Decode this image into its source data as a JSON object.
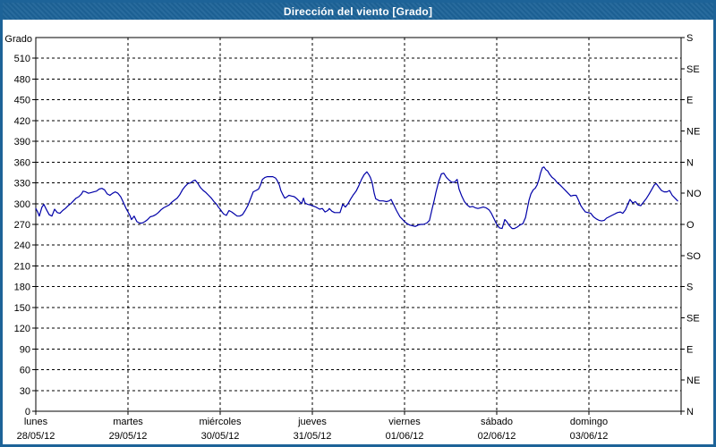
{
  "window": {
    "title": "Dirección del viento [Grado]"
  },
  "colors": {
    "frame": "#1d6398",
    "title_text": "#ffffff",
    "background": "#ffffff",
    "axis": "#000000",
    "grid": "#000000",
    "line": "#0000a8"
  },
  "chart_data": {
    "type": "line",
    "title": "Dirección del viento [Grado]",
    "ylabel": "Grado",
    "ylim": [
      0,
      540
    ],
    "y_left": {
      "label": "Grado",
      "tick_min": 0,
      "tick_max": 510,
      "tick_step": 30
    },
    "y_right": {
      "tick_step": 45,
      "labels_from_bottom": [
        "N",
        "NE",
        "E",
        "SE",
        "S",
        "SO",
        "O",
        "NO",
        "N",
        "NE",
        "E",
        "SE",
        "S"
      ]
    },
    "x_axis": {
      "unit": "hours",
      "min": 0,
      "max": 168,
      "hours_per_day": 24,
      "days": [
        {
          "name": "lunes",
          "date": "28/05/12"
        },
        {
          "name": "martes",
          "date": "29/05/12"
        },
        {
          "name": "miércoles",
          "date": "30/05/12"
        },
        {
          "name": "jueves",
          "date": "31/05/12"
        },
        {
          "name": "viernes",
          "date": "01/06/12"
        },
        {
          "name": "sábado",
          "date": "02/06/12"
        },
        {
          "name": "domingo",
          "date": "03/06/12"
        }
      ]
    },
    "grid": {
      "horizontal_every": 30,
      "vertical_every_hours": 24,
      "style": "dashed"
    },
    "legend": "none",
    "series": [
      {
        "name": "Dirección del viento",
        "unit": "Grado",
        "color": "#0000a8",
        "points": [
          [
            0,
            293
          ],
          [
            0.5,
            288
          ],
          [
            0.9,
            282
          ],
          [
            1.6,
            295
          ],
          [
            2.1,
            299
          ],
          [
            2.8,
            291
          ],
          [
            3.5,
            284
          ],
          [
            4.2,
            282
          ],
          [
            4.9,
            292
          ],
          [
            5.6,
            287
          ],
          [
            6.3,
            286
          ],
          [
            7,
            290
          ],
          [
            7.7,
            293
          ],
          [
            8.4,
            297
          ],
          [
            9.1,
            300
          ],
          [
            9.8,
            304
          ],
          [
            10.5,
            308
          ],
          [
            11.2,
            310
          ],
          [
            11.9,
            314
          ],
          [
            12.3,
            318
          ],
          [
            13,
            317
          ],
          [
            13.7,
            315
          ],
          [
            14.4,
            316
          ],
          [
            15.1,
            317
          ],
          [
            15.8,
            318
          ],
          [
            16.5,
            321
          ],
          [
            17.2,
            322
          ],
          [
            17.9,
            320
          ],
          [
            18.6,
            314
          ],
          [
            19.3,
            312
          ],
          [
            20,
            315
          ],
          [
            20.7,
            317
          ],
          [
            21.4,
            315
          ],
          [
            22.1,
            310
          ],
          [
            22.8,
            302
          ],
          [
            23.5,
            293
          ],
          [
            24,
            288
          ],
          [
            24.5,
            283
          ],
          [
            24.9,
            277
          ],
          [
            25.6,
            282
          ],
          [
            26.3,
            274
          ],
          [
            27,
            272
          ],
          [
            27.7,
            272
          ],
          [
            28.4,
            274
          ],
          [
            29.1,
            277
          ],
          [
            29.8,
            281
          ],
          [
            30.5,
            282
          ],
          [
            31.2,
            284
          ],
          [
            31.9,
            287
          ],
          [
            32.6,
            291
          ],
          [
            33.3,
            294
          ],
          [
            34,
            296
          ],
          [
            34.7,
            298
          ],
          [
            35.4,
            302
          ],
          [
            36.1,
            305
          ],
          [
            36.8,
            308
          ],
          [
            37.5,
            313
          ],
          [
            38.2,
            320
          ],
          [
            38.9,
            325
          ],
          [
            39.6,
            329
          ],
          [
            40.3,
            330
          ],
          [
            41,
            333
          ],
          [
            41.5,
            334
          ],
          [
            42.2,
            329
          ],
          [
            42.9,
            323
          ],
          [
            43.6,
            319
          ],
          [
            44.3,
            316
          ],
          [
            45,
            312
          ],
          [
            45.7,
            308
          ],
          [
            46.4,
            303
          ],
          [
            47.1,
            299
          ],
          [
            47.5,
            295
          ],
          [
            48,
            292
          ],
          [
            48.5,
            288
          ],
          [
            48.9,
            285
          ],
          [
            49.6,
            283
          ],
          [
            50.3,
            290
          ],
          [
            51,
            288
          ],
          [
            51.7,
            285
          ],
          [
            52.4,
            282
          ],
          [
            53.1,
            282
          ],
          [
            53.8,
            284
          ],
          [
            54.5,
            290
          ],
          [
            55.2,
            297
          ],
          [
            55.9,
            307
          ],
          [
            56.6,
            317
          ],
          [
            57.3,
            319
          ],
          [
            58,
            321
          ],
          [
            58.5,
            327
          ],
          [
            59,
            335
          ],
          [
            59.7,
            338
          ],
          [
            60.3,
            339
          ],
          [
            61,
            339
          ],
          [
            61.7,
            339
          ],
          [
            62.4,
            337
          ],
          [
            62.9,
            333
          ],
          [
            63.4,
            327
          ],
          [
            63.8,
            319
          ],
          [
            64.3,
            313
          ],
          [
            64.8,
            308
          ],
          [
            65.2,
            309
          ],
          [
            65.9,
            312
          ],
          [
            66.6,
            311
          ],
          [
            67.3,
            310
          ],
          [
            68,
            307
          ],
          [
            68.7,
            303
          ],
          [
            69.2,
            300
          ],
          [
            69.7,
            308
          ],
          [
            70.1,
            301
          ],
          [
            70.8,
            299
          ],
          [
            71.5,
            298
          ],
          [
            72,
            297
          ],
          [
            72.9,
            295
          ],
          [
            73.9,
            292
          ],
          [
            74.6,
            293
          ],
          [
            75.3,
            288
          ],
          [
            76,
            290
          ],
          [
            76.4,
            293
          ],
          [
            77.1,
            289
          ],
          [
            77.8,
            287
          ],
          [
            78.5,
            287
          ],
          [
            79.2,
            287
          ],
          [
            79.9,
            299
          ],
          [
            80.6,
            295
          ],
          [
            81.3,
            300
          ],
          [
            82,
            307
          ],
          [
            82.7,
            313
          ],
          [
            83.4,
            318
          ],
          [
            84.1,
            326
          ],
          [
            84.8,
            335
          ],
          [
            85.5,
            342
          ],
          [
            86.2,
            346
          ],
          [
            86.7,
            342
          ],
          [
            87.1,
            338
          ],
          [
            87.6,
            330
          ],
          [
            88.1,
            315
          ],
          [
            88.5,
            307
          ],
          [
            89.5,
            304
          ],
          [
            90.4,
            304
          ],
          [
            91.3,
            303
          ],
          [
            92,
            304
          ],
          [
            92.5,
            306
          ],
          [
            93.2,
            298
          ],
          [
            93.9,
            290
          ],
          [
            94.8,
            281
          ],
          [
            95.5,
            277
          ],
          [
            96,
            274
          ],
          [
            96.7,
            271
          ],
          [
            97.4,
            269
          ],
          [
            98.1,
            268
          ],
          [
            98.8,
            267
          ],
          [
            99.5,
            269
          ],
          [
            100.2,
            270
          ],
          [
            100.9,
            270
          ],
          [
            101.8,
            272
          ],
          [
            102.5,
            276
          ],
          [
            103.2,
            293
          ],
          [
            103.7,
            304
          ],
          [
            104.2,
            317
          ],
          [
            104.9,
            332
          ],
          [
            105.6,
            343
          ],
          [
            106.2,
            344
          ],
          [
            106.9,
            338
          ],
          [
            107.6,
            334
          ],
          [
            108.3,
            331
          ],
          [
            109,
            331
          ],
          [
            109.7,
            335
          ],
          [
            110.2,
            321
          ],
          [
            110.9,
            311
          ],
          [
            111.6,
            303
          ],
          [
            112.3,
            298
          ],
          [
            113,
            295
          ],
          [
            113.7,
            296
          ],
          [
            114.4,
            294
          ],
          [
            115.1,
            293
          ],
          [
            115.8,
            294
          ],
          [
            116.5,
            295
          ],
          [
            117.2,
            294
          ],
          [
            118,
            291
          ],
          [
            118.6,
            286
          ],
          [
            119.3,
            278
          ],
          [
            120,
            270
          ],
          [
            120.7,
            265
          ],
          [
            121.4,
            264
          ],
          [
            122.1,
            277
          ],
          [
            122.6,
            274
          ],
          [
            123.3,
            268
          ],
          [
            124,
            264
          ],
          [
            124.6,
            264
          ],
          [
            125.3,
            266
          ],
          [
            126,
            269
          ],
          [
            126.8,
            271
          ],
          [
            127.5,
            280
          ],
          [
            127.9,
            291
          ],
          [
            128.4,
            305
          ],
          [
            128.9,
            314
          ],
          [
            129.5,
            320
          ],
          [
            130,
            322
          ],
          [
            130.5,
            327
          ],
          [
            131,
            335
          ],
          [
            131.4,
            344
          ],
          [
            131.9,
            352
          ],
          [
            132.3,
            353
          ],
          [
            132.8,
            349
          ],
          [
            133.3,
            347
          ],
          [
            133.7,
            343
          ],
          [
            134.4,
            338
          ],
          [
            135.1,
            335
          ],
          [
            135.8,
            330
          ],
          [
            136.5,
            327
          ],
          [
            137.2,
            323
          ],
          [
            137.9,
            319
          ],
          [
            138.6,
            315
          ],
          [
            139.3,
            311
          ],
          [
            140,
            312
          ],
          [
            140.7,
            312
          ],
          [
            141.2,
            306
          ],
          [
            141.9,
            297
          ],
          [
            142.4,
            293
          ],
          [
            143.1,
            288
          ],
          [
            143.8,
            287
          ],
          [
            144.5,
            286
          ],
          [
            145.2,
            281
          ],
          [
            145.9,
            278
          ],
          [
            146.6,
            276
          ],
          [
            147.3,
            275
          ],
          [
            148,
            276
          ],
          [
            148.6,
            279
          ],
          [
            149.3,
            281
          ],
          [
            150,
            283
          ],
          [
            150.7,
            285
          ],
          [
            151.4,
            287
          ],
          [
            152.2,
            288
          ],
          [
            152.8,
            286
          ],
          [
            153.5,
            291
          ],
          [
            154.2,
            300
          ],
          [
            154.7,
            306
          ],
          [
            155.4,
            301
          ],
          [
            156.1,
            303
          ],
          [
            156.8,
            298
          ],
          [
            157.5,
            297
          ],
          [
            158.2,
            302
          ],
          [
            158.9,
            307
          ],
          [
            159.6,
            313
          ],
          [
            160.3,
            320
          ],
          [
            161,
            327
          ],
          [
            161.5,
            329
          ],
          [
            162.2,
            324
          ],
          [
            162.9,
            319
          ],
          [
            163.6,
            317
          ],
          [
            164.3,
            317
          ],
          [
            165,
            319
          ],
          [
            165.7,
            312
          ],
          [
            166.4,
            308
          ],
          [
            167.1,
            304
          ]
        ]
      }
    ]
  }
}
